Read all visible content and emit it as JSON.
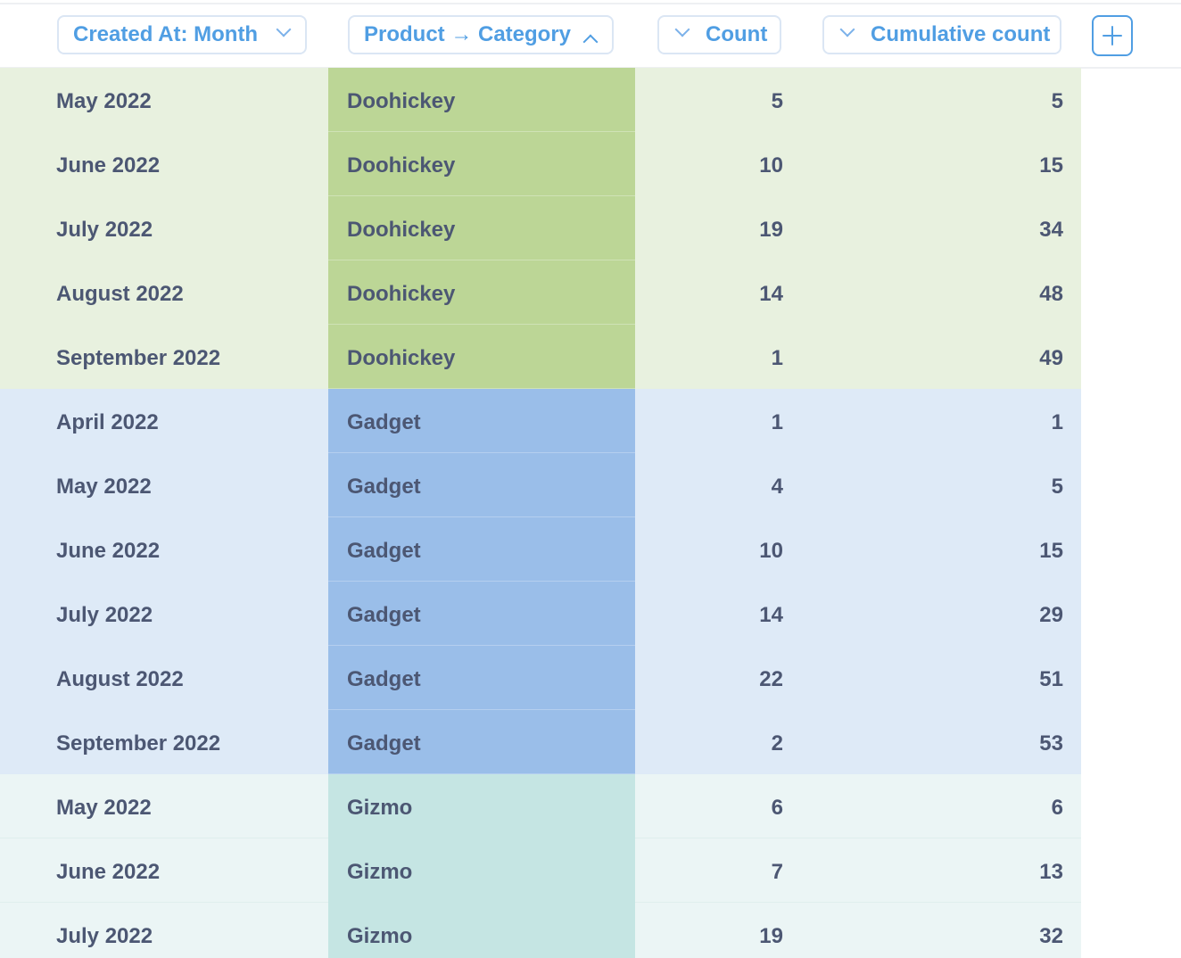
{
  "header": {
    "columns": [
      {
        "label": "Created At: Month",
        "sort": "desc",
        "icon": "chevron-down-icon"
      },
      {
        "label": "Product → Category",
        "sort": "asc",
        "icon": "chevron-up-icon"
      },
      {
        "label": "Count",
        "icon": "chevron-down-icon"
      },
      {
        "label": "Cumulative count",
        "icon": "chevron-down-icon"
      }
    ],
    "add_icon": "plus-icon"
  },
  "rows": [
    {
      "month": "May 2022",
      "category": "Doohickey",
      "count": "5",
      "cumulative": "5"
    },
    {
      "month": "June 2022",
      "category": "Doohickey",
      "count": "10",
      "cumulative": "15"
    },
    {
      "month": "July 2022",
      "category": "Doohickey",
      "count": "19",
      "cumulative": "34"
    },
    {
      "month": "August 2022",
      "category": "Doohickey",
      "count": "14",
      "cumulative": "48"
    },
    {
      "month": "September 2022",
      "category": "Doohickey",
      "count": "1",
      "cumulative": "49"
    },
    {
      "month": "April 2022",
      "category": "Gadget",
      "count": "1",
      "cumulative": "1"
    },
    {
      "month": "May 2022",
      "category": "Gadget",
      "count": "4",
      "cumulative": "5"
    },
    {
      "month": "June 2022",
      "category": "Gadget",
      "count": "10",
      "cumulative": "15"
    },
    {
      "month": "July 2022",
      "category": "Gadget",
      "count": "14",
      "cumulative": "29"
    },
    {
      "month": "August 2022",
      "category": "Gadget",
      "count": "22",
      "cumulative": "51"
    },
    {
      "month": "September 2022",
      "category": "Gadget",
      "count": "2",
      "cumulative": "53"
    },
    {
      "month": "May 2022",
      "category": "Gizmo",
      "count": "6",
      "cumulative": "6"
    },
    {
      "month": "June 2022",
      "category": "Gizmo",
      "count": "7",
      "cumulative": "13"
    },
    {
      "month": "July 2022",
      "category": "Gizmo",
      "count": "19",
      "cumulative": "32"
    }
  ],
  "colors": {
    "accent": "#509ee3",
    "text": "#4c5773",
    "doohickey_row": "#e8f1df",
    "doohickey_cell": "#bcd696",
    "gadget_row": "#deeaf7",
    "gadget_cell": "#9abee9",
    "gizmo_row": "#ebf5f5",
    "gizmo_cell": "#c5e5e3"
  }
}
